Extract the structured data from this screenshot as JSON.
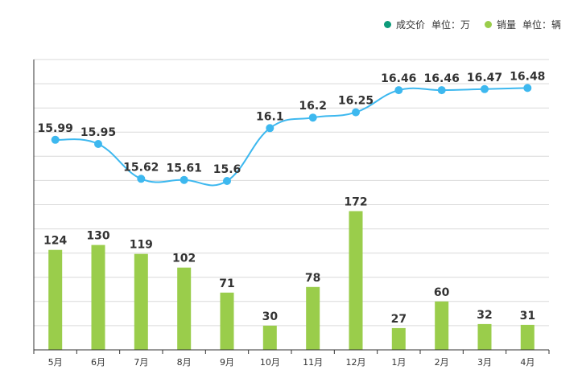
{
  "chart_data": {
    "type": "bar+line",
    "categories": [
      "5月",
      "6月",
      "7月",
      "8月",
      "9月",
      "10月",
      "11月",
      "12月",
      "1月",
      "2月",
      "3月",
      "4月"
    ],
    "series": [
      {
        "name": "成交价",
        "unit_label": "单位：万",
        "type": "line",
        "color": "#3db8ef",
        "legend_color": "#0e9b7a",
        "values": [
          15.99,
          15.95,
          15.62,
          15.61,
          15.6,
          16.1,
          16.2,
          16.25,
          16.46,
          16.46,
          16.47,
          16.48
        ],
        "labels": [
          "15.99",
          "15.95",
          "15.62",
          "15.61",
          "15.6",
          "16.1",
          "16.2",
          "16.25",
          "16.46",
          "16.46",
          "16.47",
          "16.48"
        ],
        "ylim": [
          14.0,
          16.75
        ]
      },
      {
        "name": "销量",
        "unit_label": "单位：辆",
        "type": "bar",
        "color": "#9acd4b",
        "legend_color": "#9acd4b",
        "values": [
          124,
          130,
          119,
          102,
          71,
          30,
          78,
          172,
          27,
          60,
          32,
          31
        ],
        "labels": [
          "124",
          "130",
          "119",
          "102",
          "71",
          "30",
          "78",
          "172",
          "27",
          "60",
          "32",
          "31"
        ],
        "ylim": [
          0,
          360
        ]
      }
    ],
    "grid": true,
    "legend_position": "top-right"
  }
}
